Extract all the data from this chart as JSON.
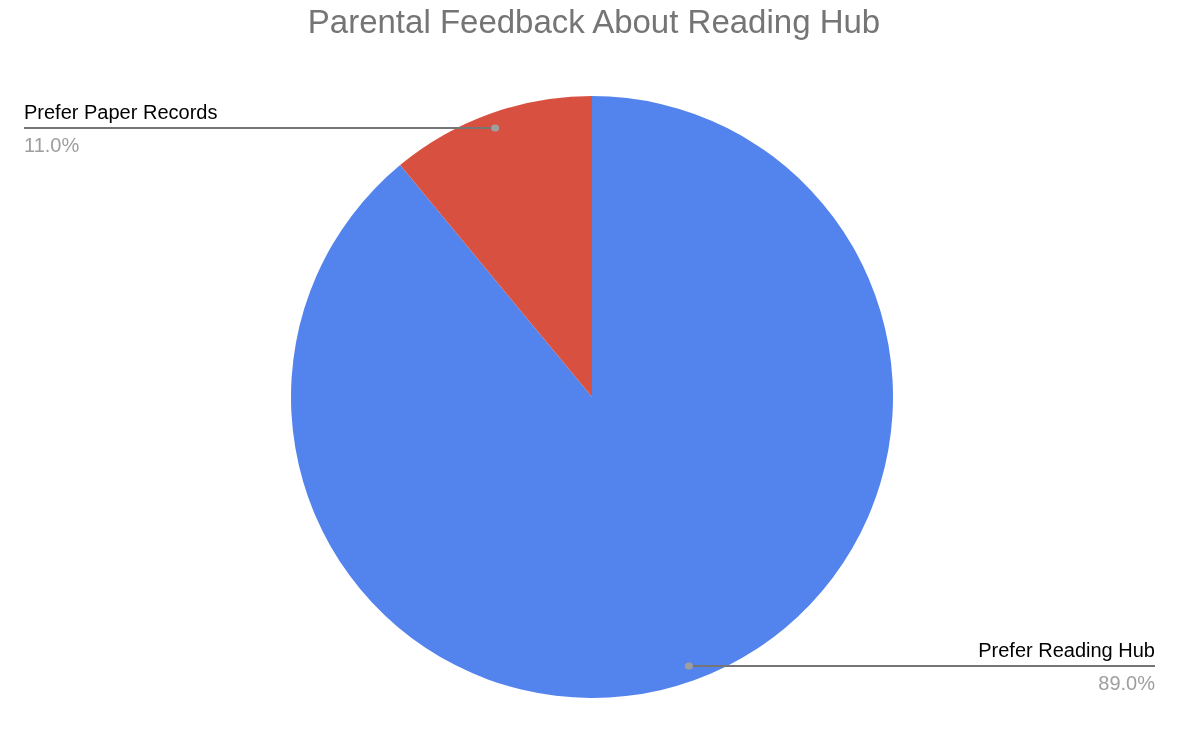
{
  "chart_data": {
    "type": "pie",
    "title": "Parental Feedback About Reading Hub",
    "categories": [
      "Prefer Reading Hub",
      "Prefer Paper Records"
    ],
    "values": [
      89.0,
      11.0
    ],
    "colors": [
      "#5383ec",
      "#d85140"
    ],
    "value_labels": [
      "89.0%",
      "11.0%"
    ]
  }
}
